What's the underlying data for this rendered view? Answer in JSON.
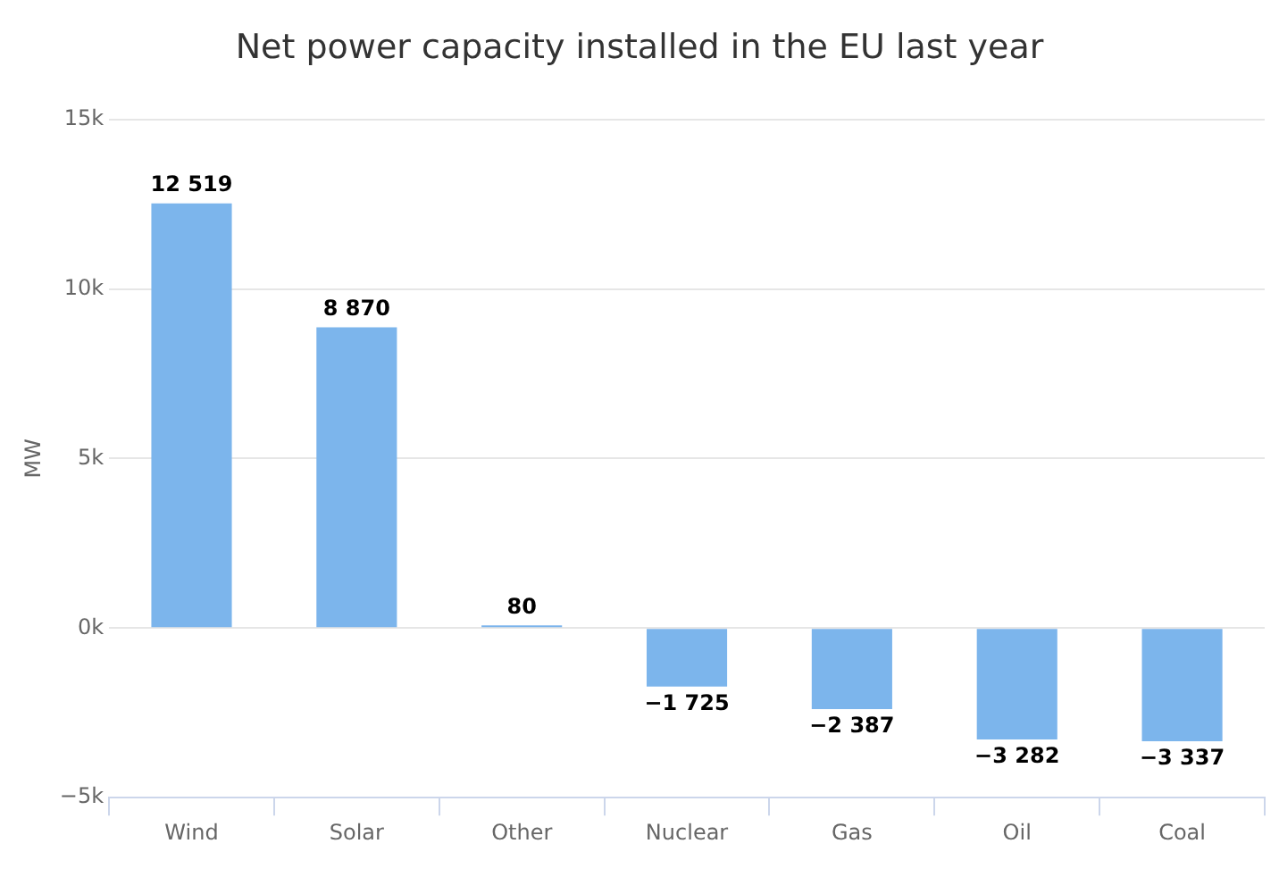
{
  "chart_data": {
    "type": "bar",
    "title": "Net power capacity installed in the EU last year",
    "ylabel": "MW",
    "categories": [
      "Wind",
      "Solar",
      "Other",
      "Nuclear",
      "Gas",
      "Oil",
      "Coal"
    ],
    "values": [
      12519,
      8870,
      80,
      -1725,
      -2387,
      -3282,
      -3337
    ],
    "value_labels": [
      "12 519",
      "8 870",
      "80",
      "−1 725",
      "−2 387",
      "−3 282",
      "−3 337"
    ],
    "color": "#7cb5ec",
    "ylim": [
      -5000,
      15000
    ],
    "yticks": [
      {
        "value": -5000,
        "label": "−5k"
      },
      {
        "value": 0,
        "label": "0k"
      },
      {
        "value": 5000,
        "label": "5k"
      },
      {
        "value": 10000,
        "label": "10k"
      },
      {
        "value": 15000,
        "label": "15k"
      }
    ],
    "grid": "y",
    "legend": false
  }
}
